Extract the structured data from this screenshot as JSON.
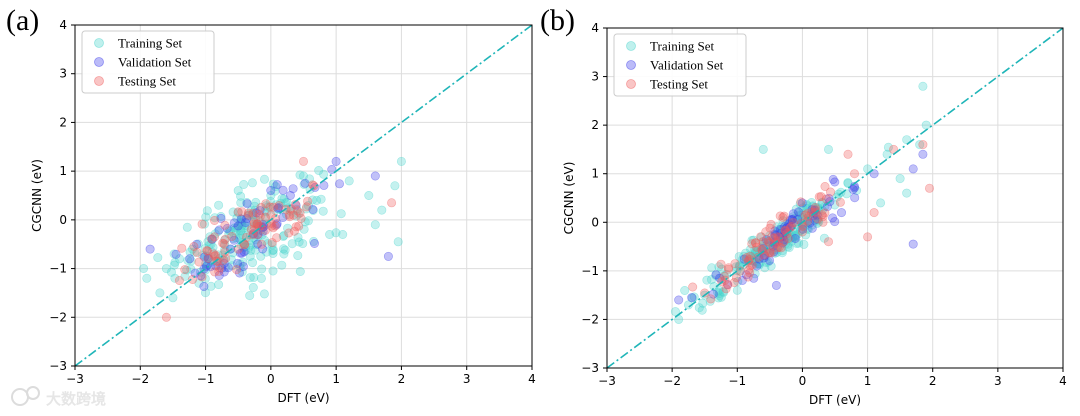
{
  "colors": {
    "train": "#49d4cc",
    "val": "#3d3dea",
    "test": "#ef5a5a",
    "diag": "#1fb5b8"
  },
  "watermark": "大数跨境",
  "chart_data": [
    {
      "type": "scatter",
      "panel_label": "(a)",
      "xlabel": "DFT (eV)",
      "ylabel": "CGCNN (eV)",
      "xlim": [
        -3,
        4
      ],
      "ylim": [
        -3,
        4
      ],
      "xticks": [
        "−3",
        "−2",
        "−1",
        "0",
        "1",
        "2",
        "3",
        "4"
      ],
      "yticks": [
        "−3",
        "−2",
        "−1",
        "0",
        "1",
        "2",
        "3",
        "4"
      ],
      "grid": true,
      "legend_position": "upper-left",
      "diagonal": "y = x (dash-dot)",
      "series": [
        {
          "name": "Training Set",
          "key": "train",
          "spread": 0.45,
          "slope": 0.55,
          "count": 200,
          "points": [
            [
              -1.9,
              -1.2
            ],
            [
              -1.7,
              -1.5
            ],
            [
              -1.6,
              -1.0
            ],
            [
              -1.5,
              -1.6
            ],
            [
              -1.4,
              -0.8
            ],
            [
              -1.2,
              -0.6
            ],
            [
              -1.0,
              -0.9
            ],
            [
              -0.8,
              0.3
            ],
            [
              -0.5,
              0.6
            ],
            [
              -0.3,
              0.2
            ],
            [
              0.0,
              0.5
            ],
            [
              0.2,
              -0.7
            ],
            [
              0.5,
              0.9
            ],
            [
              0.7,
              0.4
            ],
            [
              0.9,
              -0.3
            ],
            [
              1.2,
              0.8
            ],
            [
              1.5,
              0.5
            ],
            [
              1.7,
              0.2
            ],
            [
              1.9,
              0.7
            ],
            [
              2.0,
              1.2
            ],
            [
              1.95,
              -0.45
            ],
            [
              1.6,
              -0.1
            ],
            [
              1.1,
              -0.3
            ],
            [
              -1.1,
              -1.3
            ]
          ]
        },
        {
          "name": "Validation Set",
          "key": "val",
          "spread": 0.35,
          "slope": 0.6,
          "count": 60,
          "points": [
            [
              -1.85,
              -0.6
            ],
            [
              -0.2,
              -0.3
            ],
            [
              0.3,
              0.5
            ],
            [
              1.0,
              1.2
            ],
            [
              1.8,
              -0.75
            ],
            [
              1.6,
              0.9
            ],
            [
              -0.9,
              -0.4
            ]
          ]
        },
        {
          "name": "Testing Set",
          "key": "test",
          "spread": 0.3,
          "slope": 0.65,
          "count": 80,
          "points": [
            [
              -1.6,
              -2.0
            ],
            [
              -0.7,
              -0.4
            ],
            [
              -0.4,
              -0.5
            ],
            [
              -0.2,
              -0.3
            ],
            [
              0.0,
              0.1
            ],
            [
              0.5,
              1.2
            ],
            [
              1.85,
              0.35
            ],
            [
              -0.5,
              -0.6
            ],
            [
              -0.3,
              -0.2
            ]
          ]
        }
      ]
    },
    {
      "type": "scatter",
      "panel_label": "(b)",
      "xlabel": "DFT (eV)",
      "ylabel": "CGCNN (eV)",
      "xlim": [
        -3,
        4
      ],
      "ylim": [
        -3,
        4
      ],
      "xticks": [
        "−3",
        "−2",
        "−1",
        "0",
        "1",
        "2",
        "3",
        "4"
      ],
      "yticks": [
        "−3",
        "−2",
        "−1",
        "0",
        "1",
        "2",
        "3",
        "4"
      ],
      "grid": true,
      "legend_position": "upper-left",
      "diagonal": "y = x (dash-dot)",
      "series": [
        {
          "name": "Training Set",
          "key": "train",
          "spread": 0.18,
          "slope": 0.95,
          "count": 200,
          "points": [
            [
              -1.9,
              -2.0
            ],
            [
              -1.75,
              -1.7
            ],
            [
              -1.5,
              -1.5
            ],
            [
              -1.2,
              -1.1
            ],
            [
              -0.9,
              -0.7
            ],
            [
              -0.6,
              -0.5
            ],
            [
              -0.3,
              -0.3
            ],
            [
              0.0,
              0.1
            ],
            [
              0.3,
              0.4
            ],
            [
              0.7,
              0.8
            ],
            [
              1.0,
              1.1
            ],
            [
              1.3,
              1.4
            ],
            [
              1.6,
              1.7
            ],
            [
              1.85,
              2.8
            ],
            [
              1.9,
              2.0
            ],
            [
              -0.6,
              1.5
            ],
            [
              0.4,
              1.5
            ],
            [
              1.2,
              0.4
            ],
            [
              1.5,
              0.9
            ],
            [
              1.6,
              0.6
            ],
            [
              1.8,
              1.6
            ],
            [
              -1.0,
              -1.4
            ]
          ]
        },
        {
          "name": "Validation Set",
          "key": "val",
          "spread": 0.2,
          "slope": 0.95,
          "count": 60,
          "points": [
            [
              -1.9,
              -1.6
            ],
            [
              -1.7,
              -1.55
            ],
            [
              -0.7,
              -0.9
            ],
            [
              -0.4,
              -1.3
            ],
            [
              0.0,
              0.4
            ],
            [
              0.6,
              0.2
            ],
            [
              1.1,
              1.0
            ],
            [
              1.7,
              -0.45
            ],
            [
              1.7,
              1.1
            ],
            [
              1.85,
              1.4
            ]
          ]
        },
        {
          "name": "Testing Set",
          "key": "test",
          "spread": 0.2,
          "slope": 0.95,
          "count": 80,
          "points": [
            [
              -0.8,
              -0.7
            ],
            [
              -0.6,
              -0.4
            ],
            [
              -0.5,
              -0.6
            ],
            [
              -0.3,
              0.1
            ],
            [
              0.0,
              -0.2
            ],
            [
              0.4,
              -0.4
            ],
            [
              0.7,
              1.4
            ],
            [
              0.8,
              1.0
            ],
            [
              1.1,
              0.2
            ],
            [
              1.4,
              1.5
            ],
            [
              1.95,
              0.7
            ],
            [
              1.85,
              1.6
            ],
            [
              1.0,
              -0.3
            ]
          ]
        }
      ]
    }
  ]
}
